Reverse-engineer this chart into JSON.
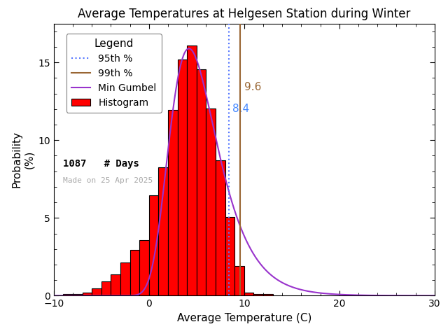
{
  "title": "Average Temperatures at Helgesen Station during Winter",
  "xlabel": "Average Temperature (C)",
  "ylabel_line1": "Probability",
  "ylabel_line2": "(%)",
  "xlim": [
    -10,
    30
  ],
  "ylim": [
    0,
    17.5
  ],
  "xticks": [
    -10,
    0,
    10,
    20,
    30
  ],
  "yticks": [
    0,
    5,
    10,
    15
  ],
  "bin_left_edges": [
    -9,
    -8,
    -7,
    -6,
    -5,
    -4,
    -3,
    -2,
    -1,
    0,
    1,
    2,
    3,
    4,
    5,
    6,
    7,
    8,
    9,
    10,
    11,
    12
  ],
  "bin_heights": [
    0.09,
    0.09,
    0.18,
    0.46,
    0.92,
    1.38,
    2.12,
    2.94,
    3.58,
    6.44,
    8.26,
    11.95,
    15.18,
    16.1,
    14.55,
    12.03,
    8.72,
    5.04,
    1.93,
    0.18,
    0.09,
    0.09
  ],
  "percentile_95": 8.4,
  "percentile_99": 9.6,
  "percentile_95_color": "#5577ff",
  "percentile_99_color": "#996633",
  "gumbel_color": "#9933cc",
  "hist_facecolor": "red",
  "hist_edgecolor": "black",
  "bar_linewidth": 0.8,
  "n_days": 1087,
  "gumbel_mu": 4.2,
  "gumbel_beta": 2.5,
  "gumbel_scale": 1.08,
  "background_color": "white",
  "title_fontsize": 12,
  "axis_label_fontsize": 11,
  "tick_label_fontsize": 10,
  "legend_fontsize": 10,
  "made_on_text": "Made on 25 Apr 2025",
  "made_on_color": "#aaaaaa",
  "annotation_95_text": "8.4",
  "annotation_99_text": "9.6",
  "annotation_95_color": "#4488ff",
  "annotation_99_color": "#996633",
  "annotation_fontsize": 11
}
